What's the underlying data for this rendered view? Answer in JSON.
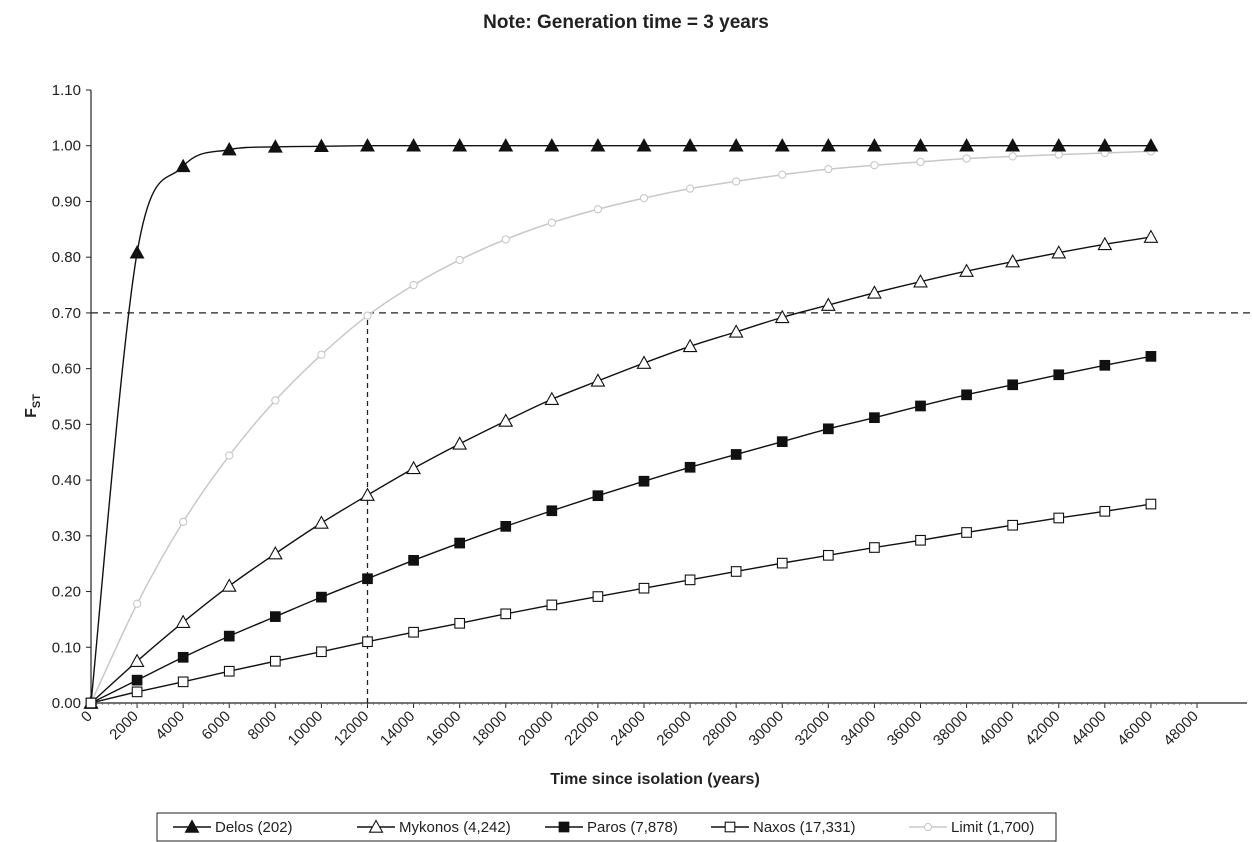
{
  "chart_data": {
    "type": "line",
    "title": "Note: Generation time = 3 years",
    "xlabel": "Time since isolation (years)",
    "ylabel": "F",
    "ylabel_sub": "ST",
    "xlim": [
      0,
      48000
    ],
    "ylim": [
      0,
      1.1
    ],
    "x_ticks": [
      "0",
      "2000",
      "4000",
      "6000",
      "8000",
      "10000",
      "12000",
      "14000",
      "16000",
      "18000",
      "20000",
      "22000",
      "24000",
      "26000",
      "28000",
      "30000",
      "32000",
      "34000",
      "36000",
      "38000",
      "40000",
      "42000",
      "44000",
      "46000",
      "48000"
    ],
    "y_ticks": [
      "0.00",
      "0.10",
      "0.20",
      "0.30",
      "0.40",
      "0.50",
      "0.60",
      "0.70",
      "0.80",
      "0.90",
      "1.00",
      "1.10"
    ],
    "grid": false,
    "legend_position": "bottom",
    "x": [
      0,
      2000,
      4000,
      6000,
      8000,
      10000,
      12000,
      14000,
      16000,
      18000,
      20000,
      22000,
      24000,
      26000,
      28000,
      30000,
      32000,
      34000,
      36000,
      38000,
      40000,
      42000,
      44000,
      46000
    ],
    "series": [
      {
        "name": "Delos (202)",
        "marker": "filled-triangle",
        "color": "#111111",
        "values": [
          0.0,
          0.808,
          0.963,
          0.993,
          0.998,
          0.999,
          1.0,
          1.0,
          1.0,
          1.0,
          1.0,
          1.0,
          1.0,
          1.0,
          1.0,
          1.0,
          1.0,
          1.0,
          1.0,
          1.0,
          1.0,
          1.0,
          1.0,
          1.0
        ]
      },
      {
        "name": "Mykonos (4,242)",
        "marker": "open-triangle",
        "color": "#111111",
        "values": [
          0.0,
          0.075,
          0.145,
          0.21,
          0.268,
          0.323,
          0.373,
          0.421,
          0.465,
          0.506,
          0.545,
          0.578,
          0.61,
          0.64,
          0.666,
          0.692,
          0.714,
          0.736,
          0.756,
          0.775,
          0.792,
          0.808,
          0.823,
          0.836
        ]
      },
      {
        "name": "Paros (7,878)",
        "marker": "filled-square",
        "color": "#111111",
        "values": [
          0.0,
          0.041,
          0.082,
          0.12,
          0.155,
          0.19,
          0.223,
          0.256,
          0.287,
          0.317,
          0.345,
          0.372,
          0.398,
          0.423,
          0.446,
          0.469,
          0.492,
          0.512,
          0.533,
          0.553,
          0.571,
          0.589,
          0.606,
          0.622
        ]
      },
      {
        "name": "Naxos (17,331)",
        "marker": "open-square",
        "color": "#111111",
        "values": [
          0.0,
          0.02,
          0.038,
          0.057,
          0.075,
          0.092,
          0.11,
          0.127,
          0.143,
          0.16,
          0.176,
          0.191,
          0.206,
          0.221,
          0.236,
          0.251,
          0.265,
          0.279,
          0.292,
          0.306,
          0.319,
          0.332,
          0.344,
          0.357
        ]
      },
      {
        "name": "Limit (1,700)",
        "marker": "open-circle",
        "color": "#c8c8c8",
        "values": [
          0.0,
          0.178,
          0.325,
          0.444,
          0.543,
          0.625,
          0.695,
          0.75,
          0.795,
          0.832,
          0.862,
          0.886,
          0.906,
          0.923,
          0.936,
          0.948,
          0.958,
          0.965,
          0.971,
          0.977,
          0.981,
          0.984,
          0.987,
          0.99
        ]
      }
    ],
    "reference_lines": [
      {
        "axis": "y",
        "value": 0.7,
        "style": "dashed"
      },
      {
        "axis": "x",
        "value": 12000,
        "from_y": 0,
        "to_y": 0.7,
        "style": "dashed"
      }
    ]
  }
}
